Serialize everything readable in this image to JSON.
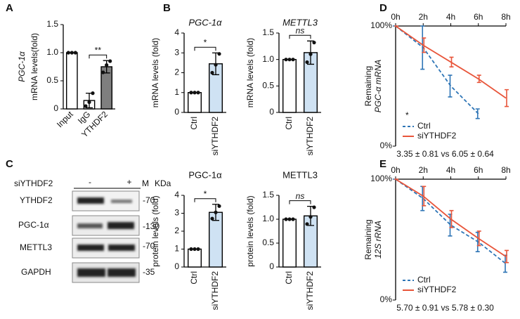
{
  "panel_labels": [
    "A",
    "B",
    "C",
    "D",
    "E"
  ],
  "western_blot": {
    "treatment_label": "siYTHDF2",
    "lanes": [
      "-",
      "+",
      "M"
    ],
    "unit": "KDa",
    "rows": [
      {
        "protein": "YTHDF2",
        "size": "-70"
      },
      {
        "protein": "PGC-1α",
        "size": "-130"
      },
      {
        "protein": "METTL3",
        "size": "-70"
      },
      {
        "protein": "GAPDH",
        "size": "-35"
      }
    ]
  },
  "chart_data": [
    {
      "type": "bar",
      "ylabel": [
        "PGC-1α",
        "mRNA levels(fold)"
      ],
      "categories": [
        "Input",
        "IgG",
        "YTHDF2"
      ],
      "values": [
        1,
        0.15,
        0.75
      ],
      "errors": [
        0,
        0.13,
        0.11
      ],
      "points": [
        [
          1,
          1,
          1
        ],
        [
          0.05,
          0.12,
          0.28
        ],
        [
          0.65,
          0.78,
          0.85
        ]
      ],
      "colors": [
        "#ffffff",
        "#ffffff",
        "#7f7f7f"
      ],
      "ylim": [
        0,
        1.5
      ],
      "yticks": [
        0,
        0.5,
        {
          "value": 1,
          "label": "1.0"
        },
        1.5
      ],
      "annotation": "**"
    },
    {
      "type": "bar",
      "title": "PGC-1α",
      "ylabel": "mRNA levels (fold)",
      "categories": [
        "Ctrl",
        "siYTHDF2"
      ],
      "values": [
        1,
        2.45
      ],
      "errors": [
        0,
        0.55
      ],
      "points": [
        [
          1,
          1,
          1
        ],
        [
          2.0,
          2.4,
          2.95
        ]
      ],
      "colors": [
        "#ffffff",
        "#cfe2f3"
      ],
      "ylim": [
        0,
        4
      ],
      "yticks": [
        0,
        1,
        2,
        3,
        4
      ],
      "annotation": "*"
    },
    {
      "type": "bar",
      "title": "METTL3",
      "ylabel": "mRNA levels (fold)",
      "categories": [
        "Ctrl",
        "siYTHDF2"
      ],
      "values": [
        1,
        1.13
      ],
      "errors": [
        0,
        0.22
      ],
      "points": [
        [
          1,
          1,
          1
        ],
        [
          0.95,
          1.1,
          1.32
        ]
      ],
      "colors": [
        "#ffffff",
        "#cfe2f3"
      ],
      "ylim": [
        0,
        1.5
      ],
      "yticks": [
        0,
        0.5,
        {
          "value": 1,
          "label": "1.0"
        },
        1.5
      ],
      "annotation": "ns"
    },
    {
      "type": "bar",
      "title": "PGC-1α",
      "ylabel": "protein levels (fold)",
      "categories": [
        "Ctrl",
        "siYTHDF2"
      ],
      "values": [
        1,
        3.05
      ],
      "errors": [
        0,
        0.45
      ],
      "points": [
        [
          1,
          1,
          1
        ],
        [
          2.7,
          3.05,
          3.4
        ]
      ],
      "colors": [
        "#ffffff",
        "#cfe2f3"
      ],
      "ylim": [
        0,
        4
      ],
      "yticks": [
        0,
        1,
        2,
        3,
        4
      ],
      "annotation": "*"
    },
    {
      "type": "bar",
      "title": "METTL3",
      "ylabel": "protein levels (fold)",
      "categories": [
        "Ctrl",
        "siYTHDF2"
      ],
      "values": [
        1,
        1.07
      ],
      "errors": [
        0,
        0.2
      ],
      "points": [
        [
          1,
          1,
          1
        ],
        [
          0.9,
          1.05,
          1.25
        ]
      ],
      "colors": [
        "#ffffff",
        "#cfe2f3"
      ],
      "ylim": [
        0,
        1.5
      ],
      "yticks": [
        0,
        0.5,
        {
          "value": 1,
          "label": "1.0"
        },
        1.5
      ],
      "annotation": "ns"
    },
    {
      "type": "line",
      "ylabel": [
        "Remaining",
        "PGC-α mRNA"
      ],
      "x": [
        0,
        2,
        4,
        6,
        8
      ],
      "xlim": [
        0,
        8
      ],
      "xticks": [
        {
          "value": 0,
          "label": "0h"
        },
        {
          "value": 2,
          "label": "2h"
        },
        {
          "value": 4,
          "label": "4h"
        },
        {
          "value": 6,
          "label": "6h"
        },
        {
          "value": 8,
          "label": "8h"
        }
      ],
      "ylim": [
        0,
        100
      ],
      "yticks": [
        {
          "value": 0,
          "label": "0%"
        },
        {
          "value": 100,
          "label": "100%"
        }
      ],
      "series": [
        {
          "name": "Ctrl",
          "color": "#2e75b6",
          "style": "dashed",
          "values": [
            100,
            82,
            50,
            27,
            null
          ],
          "errors": [
            0,
            18,
            9,
            4,
            null
          ]
        },
        {
          "name": "siYTHDF2",
          "color": "#e8553a",
          "style": "solid",
          "values": [
            100,
            84,
            70,
            56,
            40
          ],
          "errors": [
            0,
            6,
            4,
            3,
            7
          ]
        }
      ],
      "annotation": "*",
      "note": "3.35 ± 0.81 vs 6.05 ± 0.64"
    },
    {
      "type": "line",
      "ylabel": [
        "Remaining",
        "12S rRNA"
      ],
      "x": [
        0,
        2,
        4,
        6,
        8
      ],
      "xlim": [
        0,
        8
      ],
      "xticks": [
        {
          "value": 0,
          "label": "0h"
        },
        {
          "value": 2,
          "label": "2h"
        },
        {
          "value": 4,
          "label": "4h"
        },
        {
          "value": 6,
          "label": "6h"
        },
        {
          "value": 8,
          "label": "8h"
        }
      ],
      "ylim": [
        0,
        100
      ],
      "yticks": [
        {
          "value": 0,
          "label": "0%"
        },
        {
          "value": 100,
          "label": "100%"
        }
      ],
      "series": [
        {
          "name": "Ctrl",
          "color": "#2e75b6",
          "style": "dashed",
          "values": [
            100,
            84,
            62,
            48,
            30
          ],
          "errors": [
            0,
            10,
            9,
            8,
            7
          ]
        },
        {
          "name": "siYTHDF2",
          "color": "#e8553a",
          "style": "solid",
          "values": [
            100,
            86,
            67,
            51,
            36
          ],
          "errors": [
            0,
            8,
            7,
            6,
            5
          ]
        }
      ],
      "note": "5.70 ± 0.91 vs 5.78 ± 0.30"
    }
  ]
}
